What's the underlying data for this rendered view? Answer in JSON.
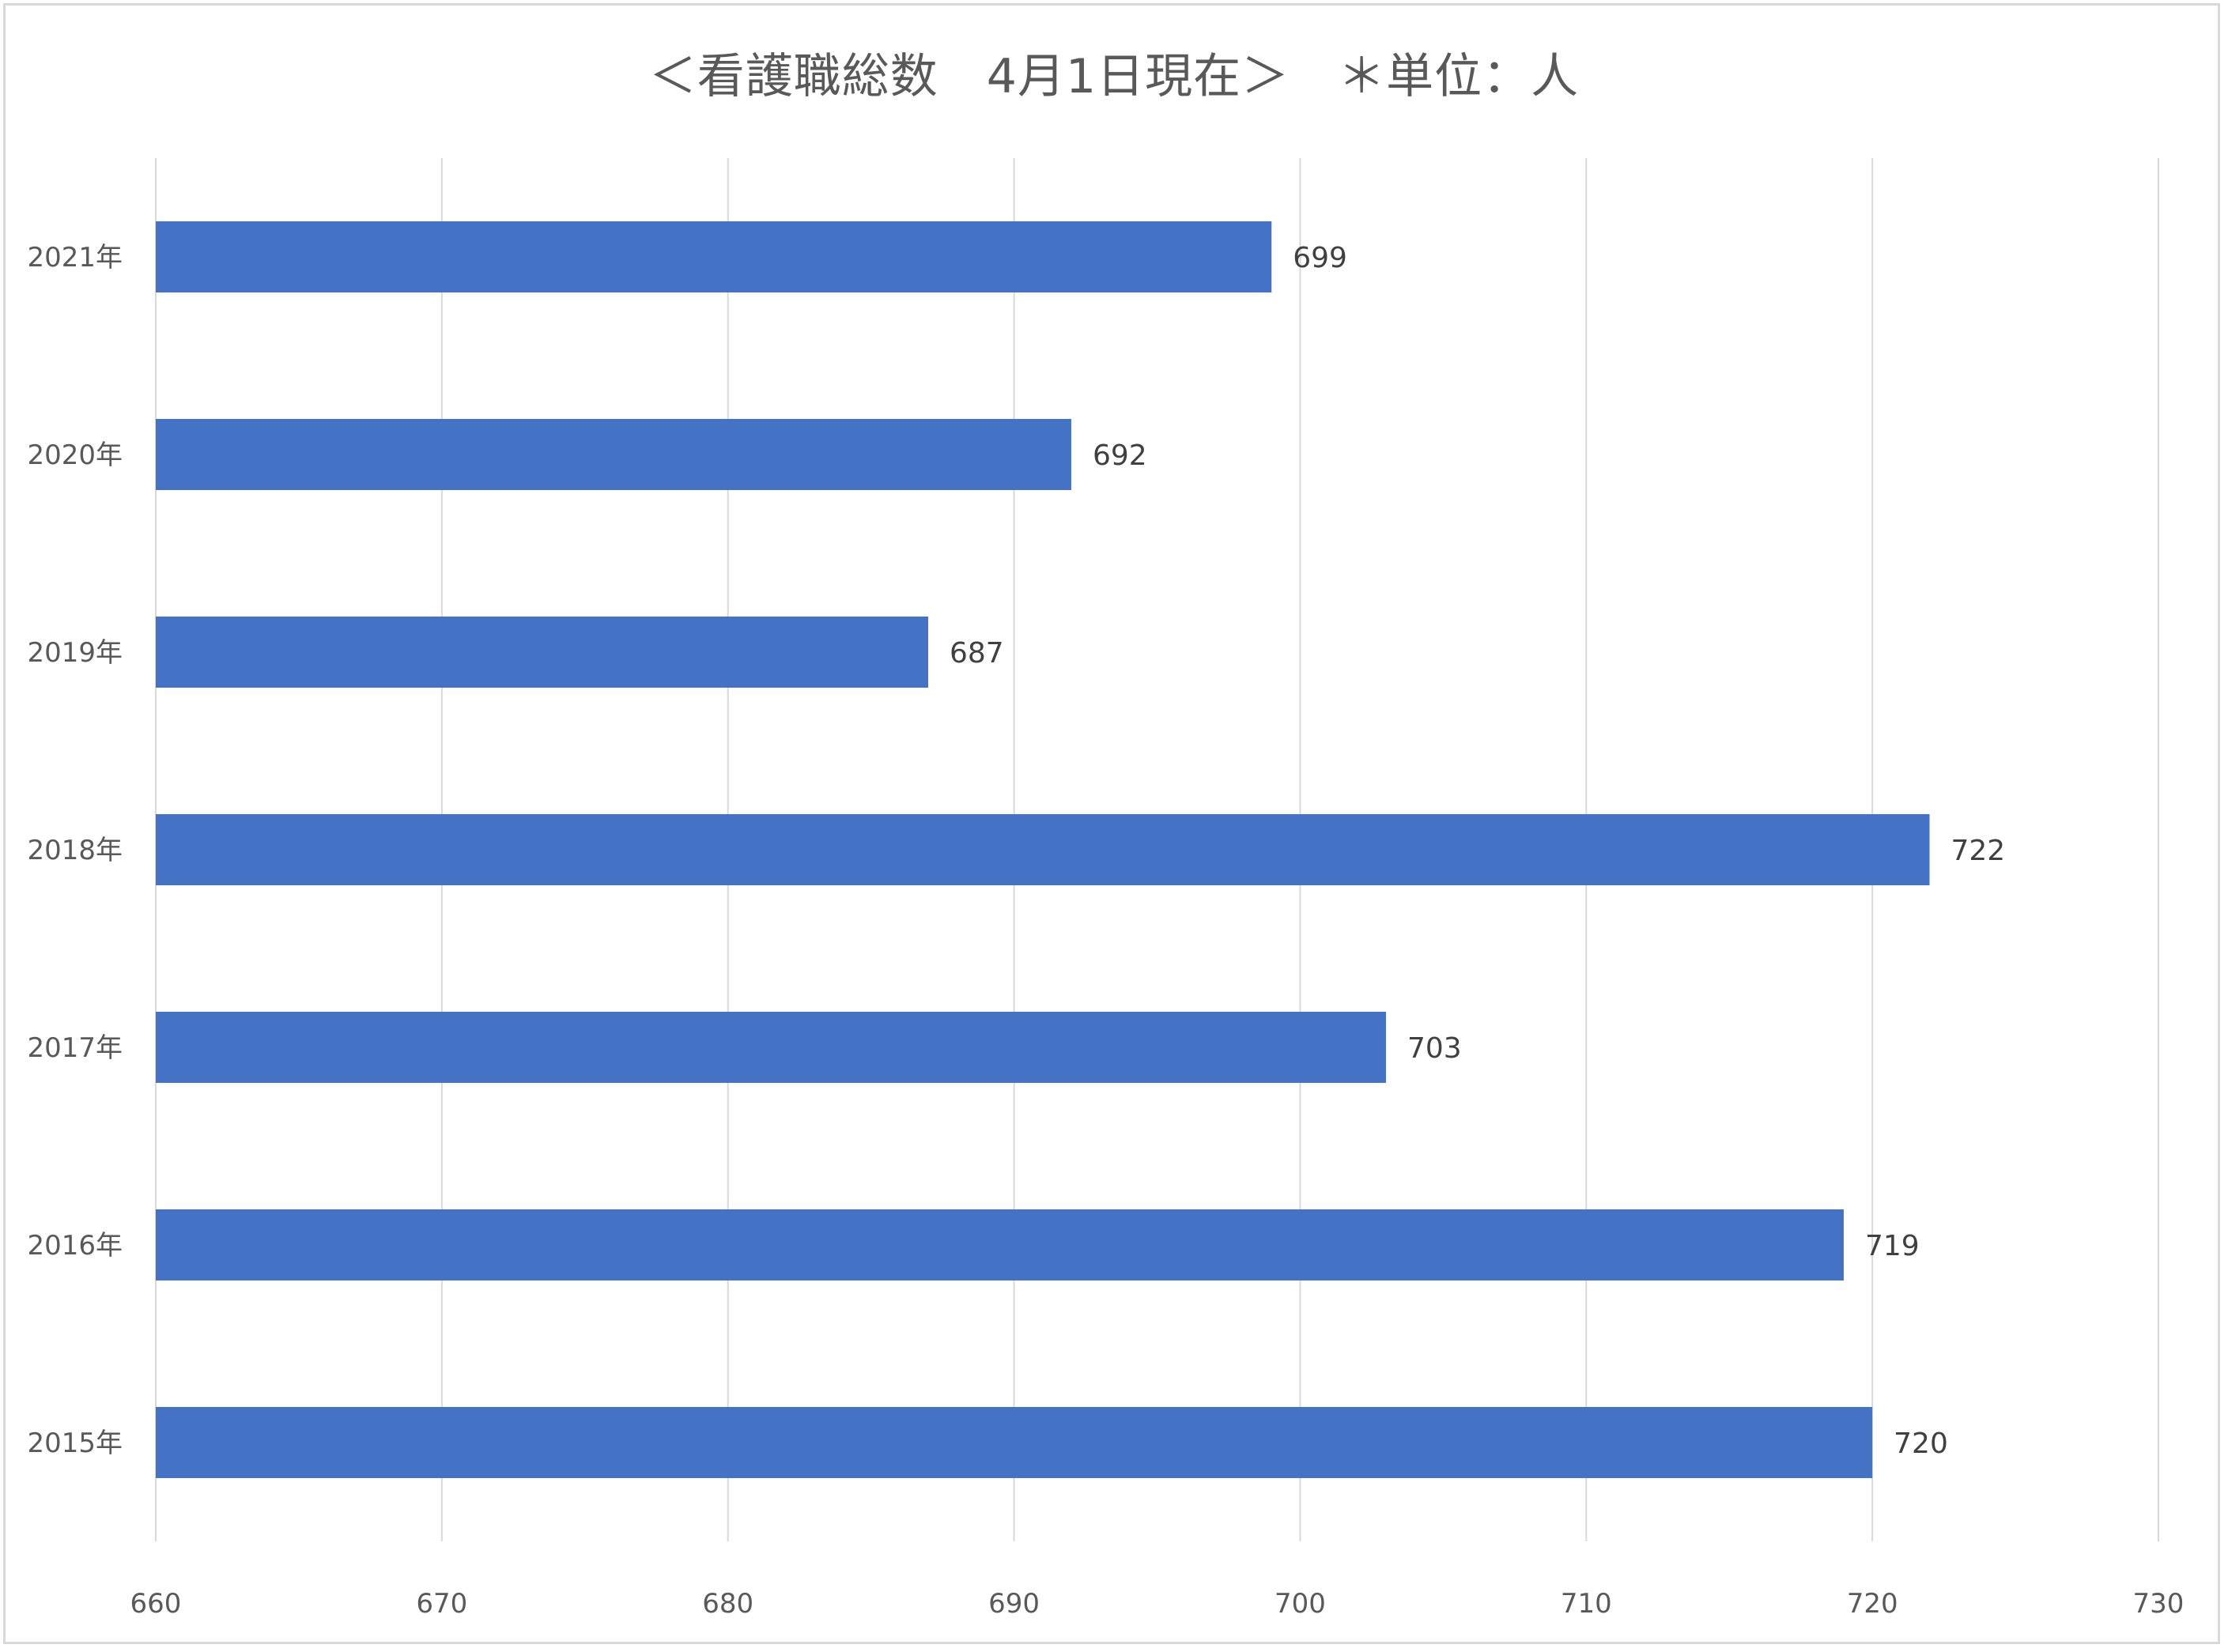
{
  "chart_data": {
    "type": "bar",
    "orientation": "horizontal",
    "title": "＜看護職総数　4月1日現在＞　＊単位：人",
    "xlabel": "",
    "ylabel": "",
    "categories": [
      "2021年",
      "2020年",
      "2019年",
      "2018年",
      "2017年",
      "2016年",
      "2015年"
    ],
    "values": [
      699,
      692,
      687,
      722,
      703,
      719,
      720
    ],
    "xlim": [
      660,
      730
    ],
    "x_ticks": [
      "660",
      "670",
      "680",
      "690",
      "700",
      "710",
      "720",
      "730"
    ],
    "grid": true,
    "legend": "none",
    "bar_color": "#4472C4",
    "gridline_color": "#d9d9d9"
  }
}
